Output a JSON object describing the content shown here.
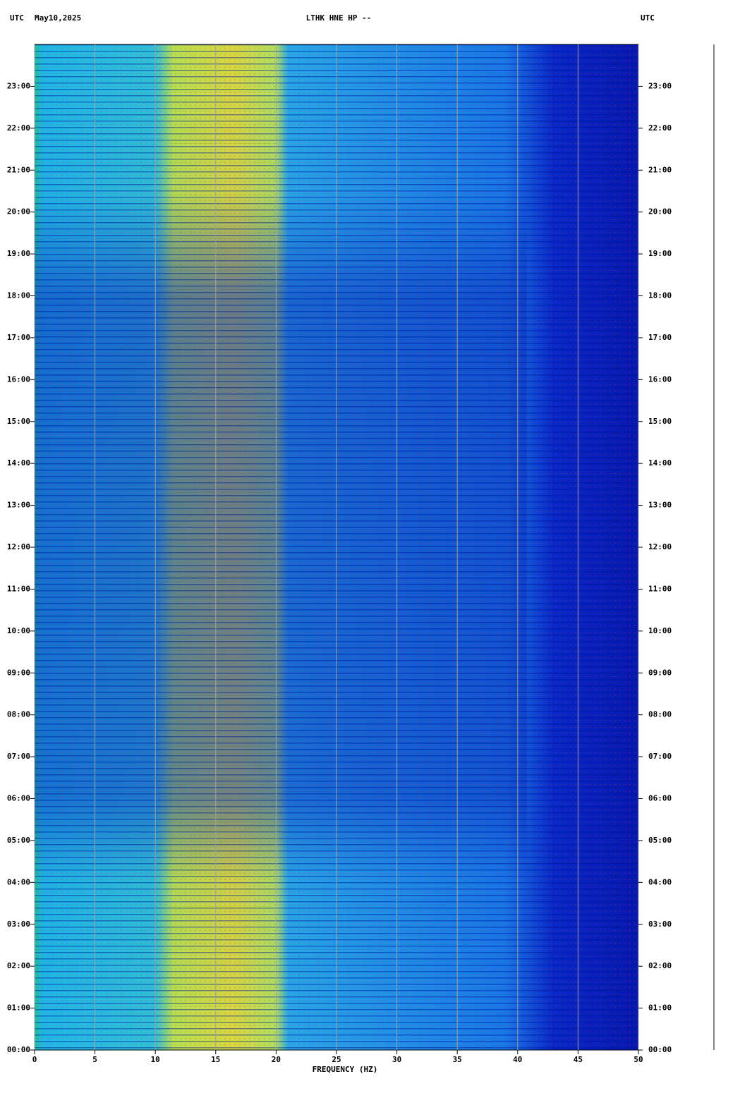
{
  "chart_data": {
    "type": "spectrogram",
    "title": "LTHK HNE HP --",
    "time_zone": "UTC",
    "date": "May10,2025",
    "x_label": "FREQUENCY (HZ)",
    "xlim": [
      0,
      50
    ],
    "xticks": [
      0,
      5,
      10,
      15,
      20,
      25,
      30,
      35,
      40,
      45,
      50
    ],
    "ylim": [
      0,
      24
    ],
    "yticks": [
      {
        "value": 0,
        "label": "00:00"
      },
      {
        "value": 1,
        "label": "01:00"
      },
      {
        "value": 2,
        "label": "02:00"
      },
      {
        "value": 3,
        "label": "03:00"
      },
      {
        "value": 4,
        "label": "04:00"
      },
      {
        "value": 5,
        "label": "05:00"
      },
      {
        "value": 6,
        "label": "06:00"
      },
      {
        "value": 7,
        "label": "07:00"
      },
      {
        "value": 8,
        "label": "08:00"
      },
      {
        "value": 9,
        "label": "09:00"
      },
      {
        "value": 10,
        "label": "10:00"
      },
      {
        "value": 11,
        "label": "11:00"
      },
      {
        "value": 12,
        "label": "12:00"
      },
      {
        "value": 13,
        "label": "13:00"
      },
      {
        "value": 14,
        "label": "14:00"
      },
      {
        "value": 15,
        "label": "15:00"
      },
      {
        "value": 16,
        "label": "16:00"
      },
      {
        "value": 17,
        "label": "17:00"
      },
      {
        "value": 18,
        "label": "18:00"
      },
      {
        "value": 19,
        "label": "19:00"
      },
      {
        "value": 20,
        "label": "20:00"
      },
      {
        "value": 21,
        "label": "21:00"
      },
      {
        "value": 22,
        "label": "22:00"
      },
      {
        "value": 23,
        "label": "23:00"
      }
    ],
    "grid": true
  }
}
